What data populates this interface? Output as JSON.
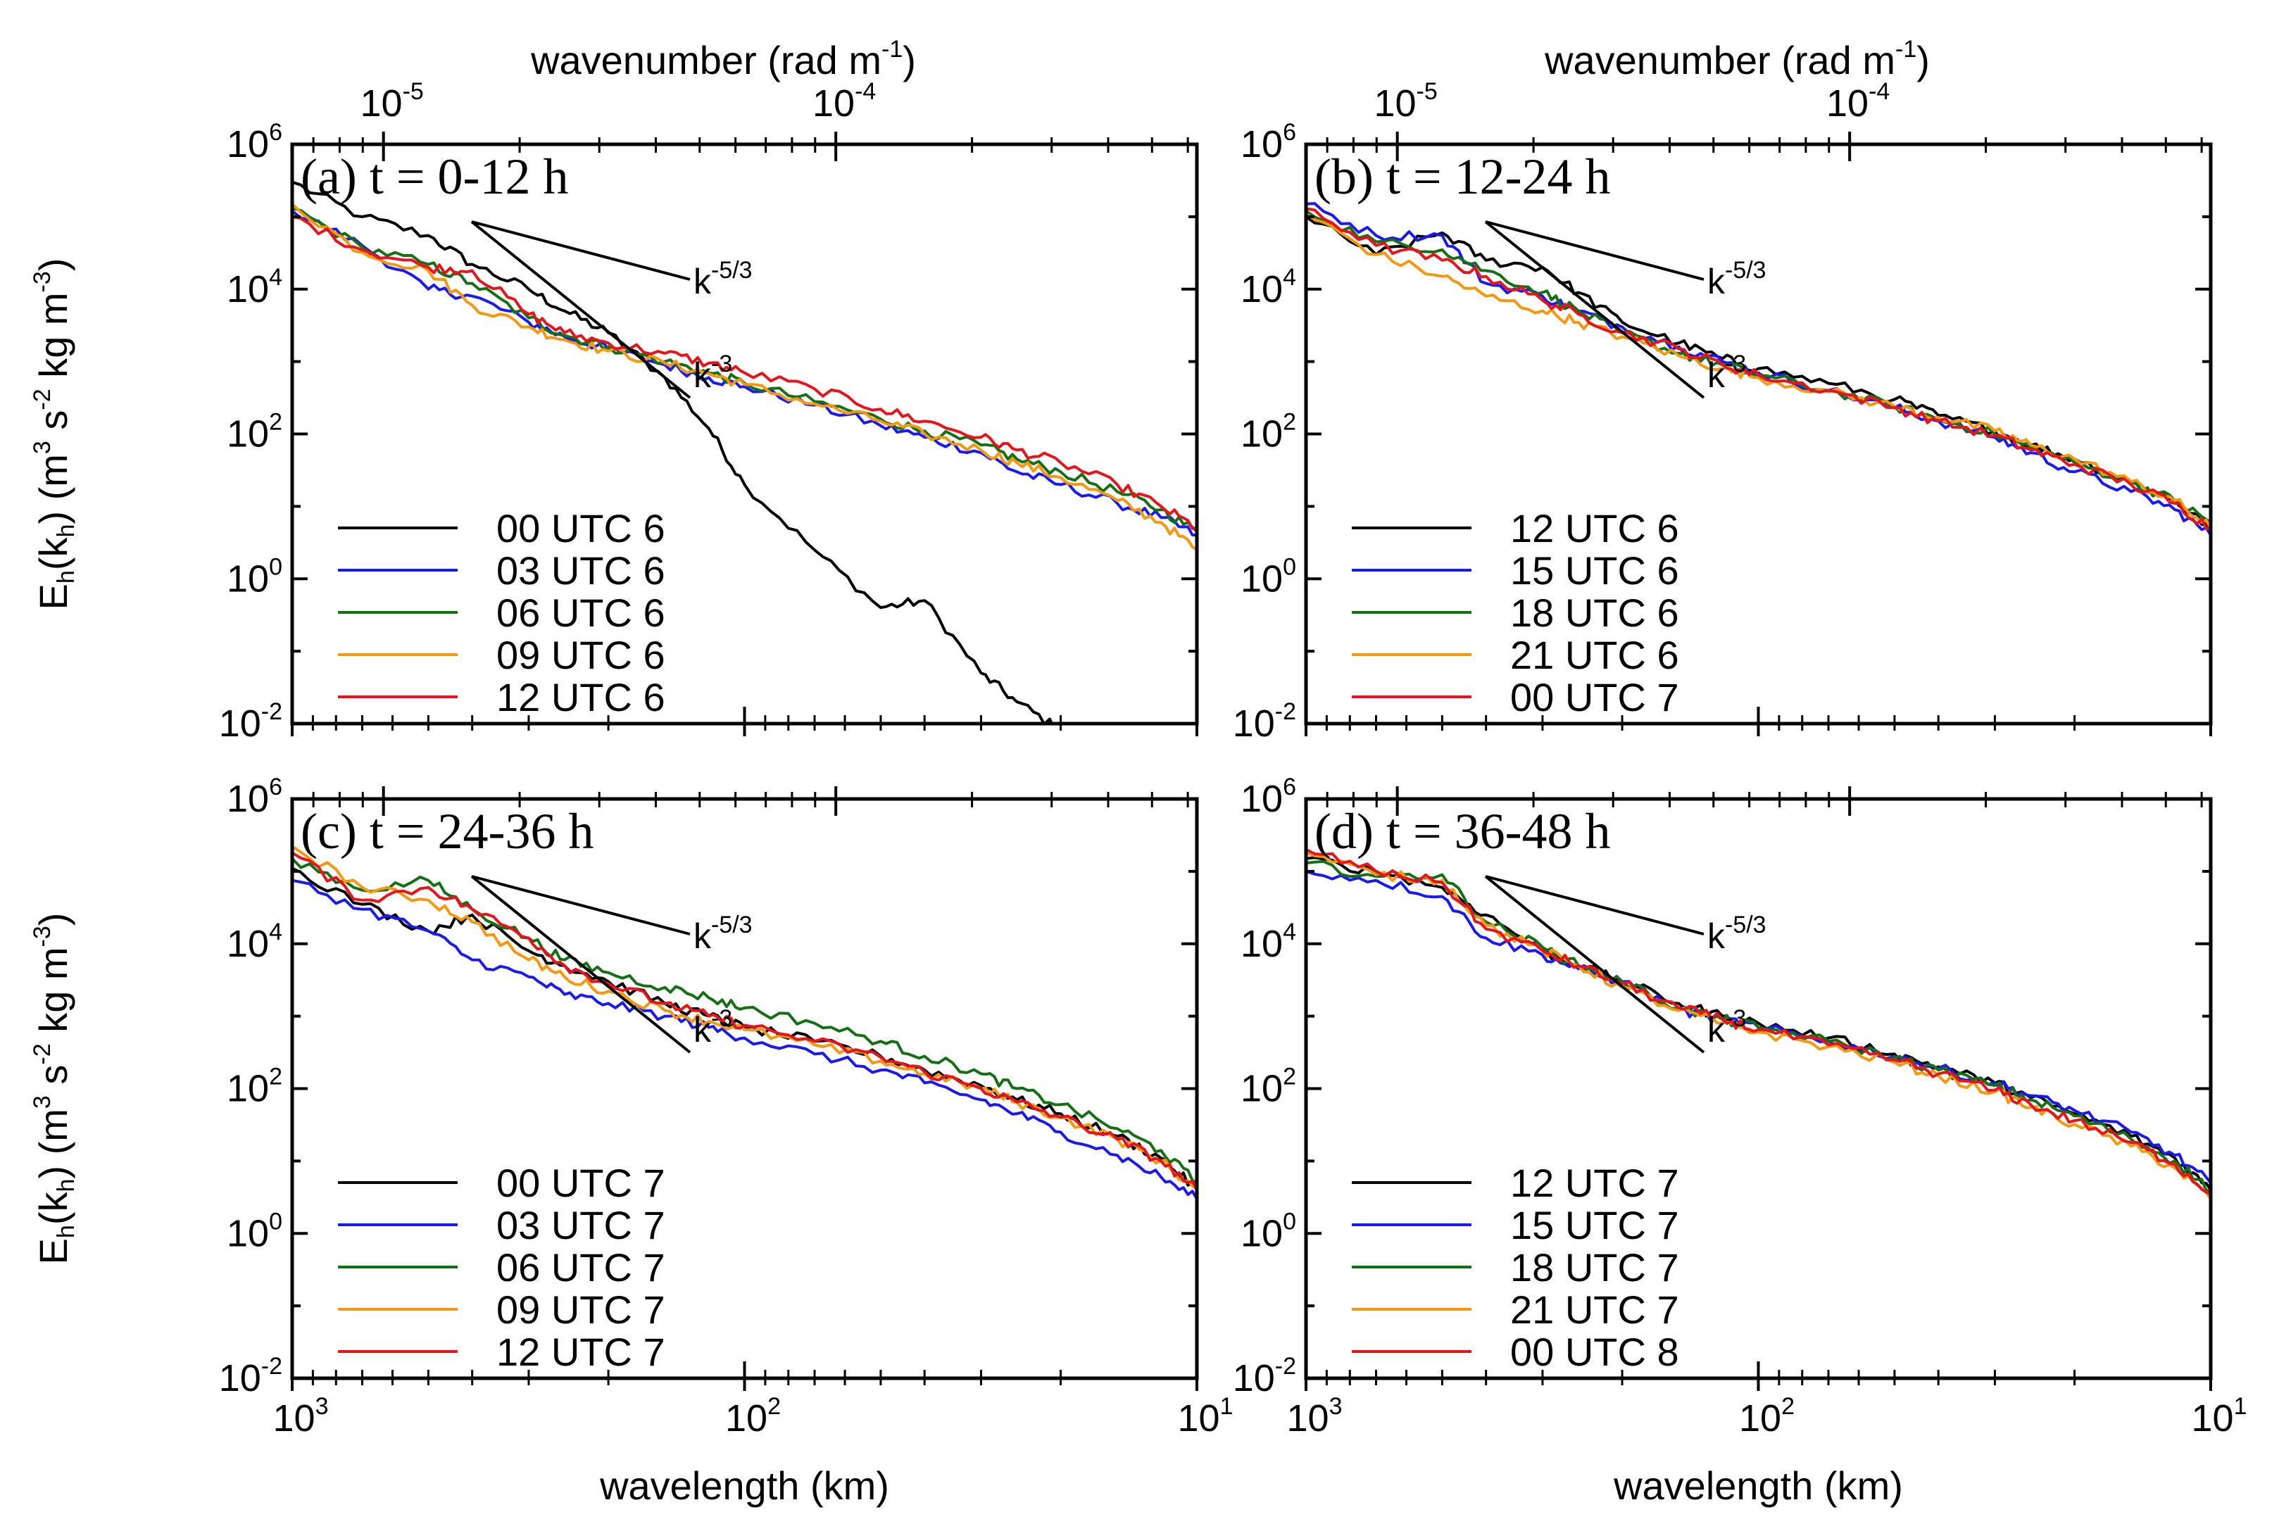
{
  "figure": {
    "top_axis_title": "wavenumber (rad m",
    "top_axis_title_exp": "-1",
    "top_axis_title_end": ")",
    "bottom_axis_title": "wavelength (km)",
    "y_axis_title_main": "E",
    "y_axis_title_sub1": "h",
    "y_axis_title_mid": "(k",
    "y_axis_title_sub2": "h",
    "y_axis_title_rest": ") (m",
    "y_axis_title_exp1": "3",
    "y_axis_title_s": " s",
    "y_axis_title_exp2": "-2",
    "y_axis_title_kg": " kg m",
    "y_axis_title_exp3": "-3",
    "y_axis_title_close": ")",
    "slope_k53": "k",
    "slope_k53_exp": "-5/3",
    "slope_k3": "k",
    "slope_k3_exp": "-3",
    "y_ticks": [
      {
        "base": "10",
        "exp": "6"
      },
      {
        "base": "10",
        "exp": "4"
      },
      {
        "base": "10",
        "exp": "2"
      },
      {
        "base": "10",
        "exp": "0"
      },
      {
        "base": "10",
        "exp": "-2"
      }
    ],
    "x_ticks_bottom": [
      {
        "base": "10",
        "exp": "3"
      },
      {
        "base": "10",
        "exp": "2"
      },
      {
        "base": "10",
        "exp": "1"
      }
    ],
    "x_ticks_top": [
      {
        "base": "10",
        "exp": "-5"
      },
      {
        "base": "10",
        "exp": "-4"
      }
    ]
  },
  "colors": {
    "black": "#000000",
    "blue": "#1a1af0",
    "green": "#157015",
    "orange": "#f5980f",
    "red": "#e8141c"
  },
  "chart_data": [
    {
      "type": "line",
      "title": "(a) t = 0-12 h",
      "xlabel": "wavelength (km)",
      "x2label": "wavenumber (rad m-1)",
      "ylabel": "Eh(kh) (m3 s-2 kg m-3)",
      "xscale": "log",
      "yscale": "log",
      "xlim": [
        1000,
        10
      ],
      "ylim": [
        0.01,
        1000000
      ],
      "x": [
        1000,
        700,
        500,
        400,
        300,
        250,
        200,
        150,
        120,
        100,
        70,
        50,
        40,
        30,
        25,
        20,
        15,
        12,
        10
      ],
      "series": [
        {
          "name": "00 UTC 6",
          "color": "black",
          "values": [
            300000,
            100000,
            55000,
            22000,
            10000,
            5000,
            2500,
            600,
            120,
            20,
            2.5,
            0.4,
            0.5,
            0.05,
            0.02,
            0.008,
            null,
            null,
            null
          ]
        },
        {
          "name": "03 UTC 6",
          "color": "blue",
          "values": [
            120000,
            40000,
            10000,
            8000,
            3500,
            2200,
            1500,
            900,
            600,
            450,
            250,
            130,
            90,
            55,
            30,
            20,
            11,
            7,
            4
          ]
        },
        {
          "name": "06 UTC 6",
          "color": "green",
          "values": [
            130000,
            38000,
            22000,
            12000,
            4000,
            2300,
            1600,
            1000,
            700,
            500,
            280,
            160,
            110,
            70,
            45,
            30,
            16,
            9,
            4.5
          ]
        },
        {
          "name": "09 UTC 6",
          "color": "orange",
          "values": [
            150000,
            32000,
            18000,
            6000,
            3000,
            2000,
            1400,
            950,
            680,
            480,
            260,
            150,
            100,
            60,
            40,
            25,
            12,
            6,
            2.5
          ]
        },
        {
          "name": "12 UTC 6",
          "color": "red",
          "values": [
            100000,
            35000,
            20000,
            18000,
            4500,
            2500,
            1800,
            1300,
            950,
            700,
            420,
            220,
            150,
            90,
            60,
            40,
            20,
            10,
            5
          ]
        }
      ]
    },
    {
      "type": "line",
      "title": "(b) t = 12-24 h",
      "xlabel": "wavelength (km)",
      "x2label": "wavenumber (rad m-1)",
      "ylabel": "Eh(kh) (m3 s-2 kg m-3)",
      "xscale": "log",
      "yscale": "log",
      "xlim": [
        1000,
        10
      ],
      "ylim": [
        0.01,
        1000000
      ],
      "x": [
        1000,
        700,
        500,
        400,
        300,
        250,
        200,
        150,
        120,
        100,
        70,
        50,
        40,
        30,
        25,
        20,
        15,
        12,
        10
      ],
      "series": [
        {
          "name": "12 UTC 6",
          "color": "black",
          "values": [
            100000,
            30000,
            60000,
            25000,
            20000,
            9000,
            3500,
            1800,
            1100,
            800,
            500,
            300,
            180,
            110,
            70,
            45,
            22,
            12,
            5
          ]
        },
        {
          "name": "15 UTC 6",
          "color": "blue",
          "values": [
            150000,
            55000,
            55000,
            12000,
            8000,
            5000,
            3000,
            1600,
            1000,
            700,
            400,
            230,
            150,
            90,
            55,
            30,
            16,
            9,
            4
          ]
        },
        {
          "name": "18 UTC 6",
          "color": "green",
          "values": [
            120000,
            45000,
            35000,
            18000,
            9000,
            5000,
            2500,
            1300,
            900,
            650,
            400,
            240,
            160,
            100,
            65,
            40,
            22,
            12,
            6
          ]
        },
        {
          "name": "21 UTC 6",
          "color": "orange",
          "values": [
            110000,
            30000,
            15000,
            8000,
            5000,
            3500,
            2200,
            1200,
            800,
            600,
            380,
            240,
            170,
            110,
            70,
            45,
            22,
            12,
            5
          ]
        },
        {
          "name": "00 UTC 7",
          "color": "red",
          "values": [
            130000,
            40000,
            25000,
            15000,
            7000,
            4500,
            2500,
            1500,
            900,
            650,
            400,
            230,
            150,
            95,
            60,
            38,
            20,
            11,
            5
          ]
        }
      ]
    },
    {
      "type": "line",
      "title": "(c) t = 24-36 h",
      "xlabel": "wavelength (km)",
      "x2label": "wavenumber (rad m-1)",
      "ylabel": "Eh(kh) (m3 s-2 kg m-3)",
      "xscale": "log",
      "yscale": "log",
      "xlim": [
        1000,
        10
      ],
      "ylim": [
        0.01,
        1000000
      ],
      "x": [
        1000,
        700,
        500,
        400,
        300,
        250,
        200,
        150,
        120,
        100,
        70,
        50,
        40,
        30,
        25,
        20,
        15,
        12,
        10
      ],
      "series": [
        {
          "name": "00 UTC 7",
          "color": "black",
          "values": [
            110000,
            35000,
            15000,
            25000,
            8000,
            5000,
            3000,
            1500,
            1000,
            700,
            450,
            280,
            180,
            110,
            70,
            45,
            22,
            11,
            4
          ]
        },
        {
          "name": "03 UTC 7",
          "color": "blue",
          "values": [
            75000,
            30000,
            15000,
            6000,
            3500,
            2000,
            1500,
            1000,
            700,
            500,
            300,
            180,
            120,
            70,
            45,
            25,
            12,
            6,
            3
          ]
        },
        {
          "name": "06 UTC 7",
          "color": "green",
          "values": [
            150000,
            55000,
            75000,
            30000,
            12000,
            6000,
            4000,
            2500,
            1800,
            1300,
            800,
            450,
            280,
            160,
            100,
            60,
            28,
            14,
            5
          ]
        },
        {
          "name": "09 UTC 7",
          "color": "orange",
          "values": [
            220000,
            60000,
            40000,
            20000,
            6000,
            3500,
            2200,
            1200,
            850,
            650,
            400,
            240,
            160,
            100,
            65,
            40,
            20,
            10,
            4
          ]
        },
        {
          "name": "12 UTC 7",
          "color": "red",
          "values": [
            180000,
            40000,
            60000,
            30000,
            12000,
            5000,
            2800,
            1500,
            1000,
            750,
            450,
            270,
            170,
            100,
            65,
            40,
            20,
            10,
            4
          ]
        }
      ]
    },
    {
      "type": "line",
      "title": "(d) t = 36-48 h",
      "xlabel": "wavelength (km)",
      "x2label": "wavenumber (rad m-1)",
      "ylabel": "Eh(kh) (m3 s-2 kg m-3)",
      "xscale": "log",
      "yscale": "log",
      "xlim": [
        1000,
        10
      ],
      "ylim": [
        0.01,
        1000000
      ],
      "x": [
        1000,
        700,
        500,
        400,
        300,
        250,
        200,
        150,
        120,
        100,
        70,
        50,
        40,
        30,
        25,
        20,
        15,
        12,
        10
      ],
      "series": [
        {
          "name": "12 UTC 7",
          "color": "black",
          "values": [
            150000,
            100000,
            60000,
            25000,
            8000,
            5000,
            3000,
            1500,
            1000,
            800,
            500,
            300,
            200,
            120,
            75,
            45,
            22,
            11,
            4
          ]
        },
        {
          "name": "15 UTC 7",
          "color": "blue",
          "values": [
            100000,
            75000,
            45000,
            12000,
            7000,
            4500,
            3000,
            1200,
            900,
            700,
            450,
            280,
            190,
            120,
            80,
            50,
            25,
            12,
            5
          ]
        },
        {
          "name": "18 UTC 7",
          "color": "green",
          "values": [
            130000,
            85000,
            90000,
            20000,
            9000,
            5000,
            3000,
            1300,
            900,
            700,
            450,
            270,
            180,
            110,
            70,
            42,
            20,
            10,
            4
          ]
        },
        {
          "name": "21 UTC 7",
          "color": "orange",
          "values": [
            180000,
            90000,
            75000,
            18000,
            8000,
            5000,
            2500,
            1200,
            800,
            600,
            380,
            230,
            150,
            90,
            55,
            32,
            16,
            8,
            3
          ]
        },
        {
          "name": "00 UTC 8",
          "color": "red",
          "values": [
            200000,
            100000,
            70000,
            16000,
            8000,
            5000,
            2800,
            1300,
            900,
            650,
            400,
            250,
            160,
            95,
            60,
            36,
            18,
            9,
            3.5
          ]
        }
      ]
    }
  ]
}
